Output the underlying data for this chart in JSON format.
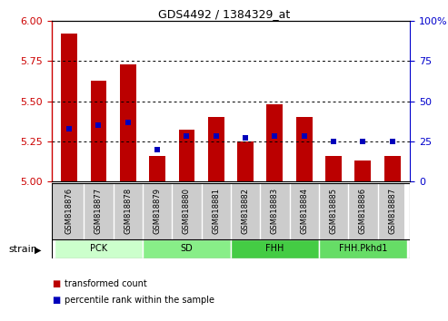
{
  "title": "GDS4492 / 1384329_at",
  "samples": [
    "GSM818876",
    "GSM818877",
    "GSM818878",
    "GSM818879",
    "GSM818880",
    "GSM818881",
    "GSM818882",
    "GSM818883",
    "GSM818884",
    "GSM818885",
    "GSM818886",
    "GSM818887"
  ],
  "transformed_count": [
    5.92,
    5.63,
    5.73,
    5.16,
    5.32,
    5.4,
    5.25,
    5.48,
    5.4,
    5.16,
    5.13,
    5.16
  ],
  "percentile_rank": [
    33,
    35,
    37,
    20,
    28,
    28,
    27,
    28,
    28,
    25,
    25,
    25
  ],
  "ylim_left": [
    5.0,
    6.0
  ],
  "ylim_right": [
    0,
    100
  ],
  "yticks_left": [
    5.0,
    5.25,
    5.5,
    5.75,
    6.0
  ],
  "yticks_right": [
    0,
    25,
    50,
    75,
    100
  ],
  "bar_color": "#bb0000",
  "dot_color": "#0000bb",
  "groups": [
    {
      "label": "PCK",
      "start": 0,
      "end": 3,
      "color": "#ccffcc"
    },
    {
      "label": "SD",
      "start": 3,
      "end": 6,
      "color": "#88ee88"
    },
    {
      "label": "FHH",
      "start": 6,
      "end": 9,
      "color": "#44cc44"
    },
    {
      "label": "FHH.Pkhd1",
      "start": 9,
      "end": 12,
      "color": "#66dd66"
    }
  ],
  "strain_label": "strain",
  "legend_items": [
    {
      "label": "transformed count",
      "color": "#bb0000"
    },
    {
      "label": "percentile rank within the sample",
      "color": "#0000bb"
    }
  ],
  "tick_color_left": "#cc0000",
  "tick_color_right": "#0000cc",
  "bar_width": 0.55,
  "baseline": 5.0,
  "label_bg_color": "#cccccc",
  "label_border_color": "#888888"
}
